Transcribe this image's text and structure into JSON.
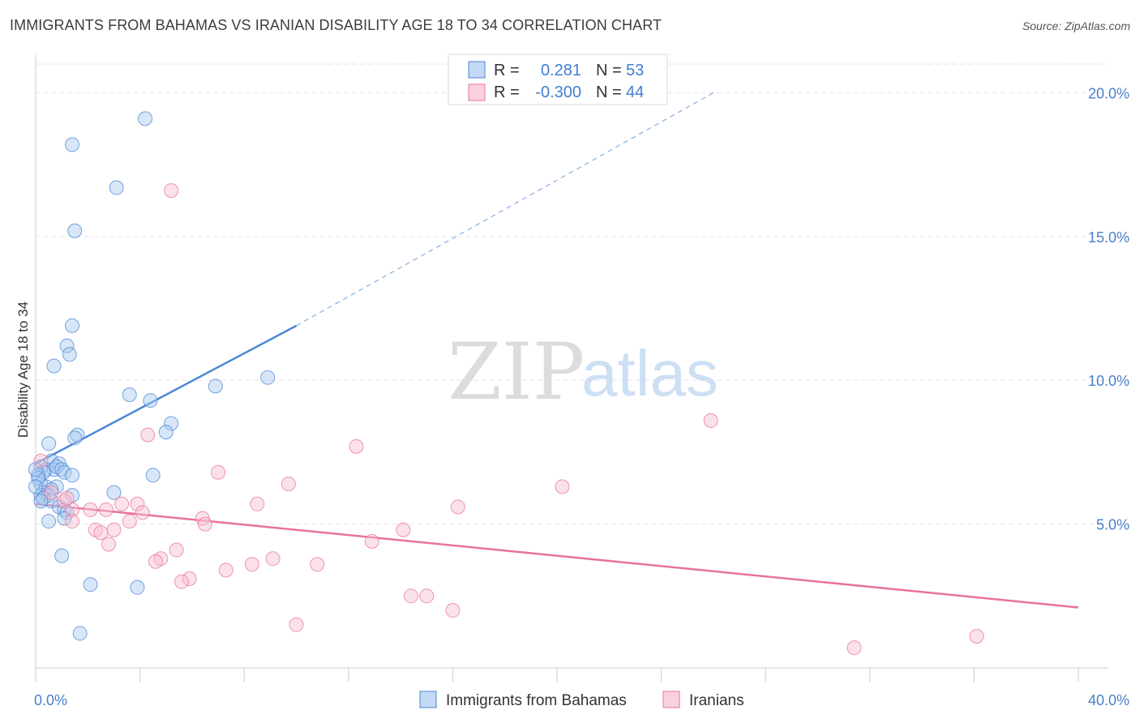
{
  "title": "IMMIGRANTS FROM BAHAMAS VS IRANIAN DISABILITY AGE 18 TO 34 CORRELATION CHART",
  "source": "Source: ZipAtlas.com",
  "watermark": {
    "zip": "ZIP",
    "atlas": "atlas"
  },
  "colors": {
    "blue": "#4a86d6",
    "blue_fill": "#a9c9f0",
    "pink": "#e8739a",
    "pink_fill": "#f6bfd0",
    "axis_text": "#4a7fc9",
    "grid": "#e6e6e6"
  },
  "legend": {
    "rows": [
      {
        "r_label": "R =",
        "r_value": "0.281",
        "n_label": "N =",
        "n_value": "53"
      },
      {
        "r_label": "R =",
        "r_value": "-0.300",
        "n_label": "N =",
        "n_value": "44"
      }
    ]
  },
  "chart_data": {
    "type": "scatter",
    "title": "IMMIGRANTS FROM BAHAMAS VS IRANIAN DISABILITY AGE 18 TO 34 CORRELATION CHART",
    "xlabel": "",
    "ylabel": "Disability Age 18 to 34",
    "xlim": [
      0,
      40
    ],
    "ylim": [
      0,
      21
    ],
    "x_ticks": [
      "0.0%",
      "40.0%"
    ],
    "y_ticks": [
      {
        "value": 5,
        "label": "5.0%"
      },
      {
        "value": 10,
        "label": "10.0%"
      },
      {
        "value": 15,
        "label": "15.0%"
      },
      {
        "value": 20,
        "label": "20.0%"
      }
    ],
    "grid": true,
    "legend_position": "bottom",
    "series": [
      {
        "name": "Immigrants from Bahamas",
        "color": "#4a86d6",
        "trend": {
          "x": [
            0,
            10
          ],
          "y": [
            7.1,
            11.9
          ],
          "dashed_to": [
            26,
            20.0
          ]
        },
        "points": [
          [
            4.2,
            19.1
          ],
          [
            1.4,
            18.2
          ],
          [
            3.1,
            16.7
          ],
          [
            1.5,
            15.2
          ],
          [
            1.4,
            11.9
          ],
          [
            1.2,
            11.2
          ],
          [
            1.3,
            10.9
          ],
          [
            0.7,
            10.5
          ],
          [
            6.9,
            9.8
          ],
          [
            8.9,
            10.1
          ],
          [
            3.6,
            9.5
          ],
          [
            4.4,
            9.3
          ],
          [
            5.2,
            8.5
          ],
          [
            5.0,
            8.2
          ],
          [
            1.6,
            8.1
          ],
          [
            1.5,
            8.0
          ],
          [
            0.5,
            7.8
          ],
          [
            0.6,
            7.2
          ],
          [
            0.9,
            7.1
          ],
          [
            0.2,
            7.0
          ],
          [
            0.4,
            6.9
          ],
          [
            0.7,
            6.9
          ],
          [
            0.8,
            7.0
          ],
          [
            1.0,
            6.9
          ],
          [
            1.1,
            6.8
          ],
          [
            0.3,
            6.8
          ],
          [
            1.4,
            6.7
          ],
          [
            4.5,
            6.7
          ],
          [
            0.1,
            6.7
          ],
          [
            0.2,
            6.4
          ],
          [
            0.4,
            6.3
          ],
          [
            0.8,
            6.3
          ],
          [
            0.6,
            6.2
          ],
          [
            0.3,
            6.1
          ],
          [
            0.5,
            6.0
          ],
          [
            0.2,
            6.0
          ],
          [
            1.4,
            6.0
          ],
          [
            3.0,
            6.1
          ],
          [
            0.3,
            5.9
          ],
          [
            0.6,
            5.8
          ],
          [
            0.9,
            5.6
          ],
          [
            1.1,
            5.5
          ],
          [
            1.2,
            5.4
          ],
          [
            1.1,
            5.2
          ],
          [
            0.5,
            5.1
          ],
          [
            1.0,
            3.9
          ],
          [
            2.1,
            2.9
          ],
          [
            3.9,
            2.8
          ],
          [
            1.7,
            1.2
          ],
          [
            0.1,
            6.6
          ],
          [
            0.0,
            6.9
          ],
          [
            0.0,
            6.3
          ],
          [
            0.2,
            5.8
          ]
        ]
      },
      {
        "name": "Iranians",
        "color": "#e8739a",
        "trend": {
          "x": [
            0,
            40
          ],
          "y": [
            5.7,
            2.1
          ]
        },
        "points": [
          [
            5.2,
            16.6
          ],
          [
            25.9,
            8.6
          ],
          [
            4.3,
            8.1
          ],
          [
            12.3,
            7.7
          ],
          [
            0.2,
            7.2
          ],
          [
            7.0,
            6.8
          ],
          [
            9.7,
            6.4
          ],
          [
            20.2,
            6.3
          ],
          [
            0.6,
            6.1
          ],
          [
            1.1,
            5.8
          ],
          [
            3.3,
            5.7
          ],
          [
            3.9,
            5.7
          ],
          [
            8.5,
            5.7
          ],
          [
            16.2,
            5.6
          ],
          [
            1.4,
            5.5
          ],
          [
            2.1,
            5.5
          ],
          [
            2.7,
            5.5
          ],
          [
            4.1,
            5.4
          ],
          [
            6.4,
            5.2
          ],
          [
            3.6,
            5.1
          ],
          [
            1.4,
            5.1
          ],
          [
            6.5,
            5.0
          ],
          [
            2.3,
            4.8
          ],
          [
            3.0,
            4.8
          ],
          [
            14.1,
            4.8
          ],
          [
            2.5,
            4.7
          ],
          [
            12.9,
            4.4
          ],
          [
            2.8,
            4.3
          ],
          [
            5.4,
            4.1
          ],
          [
            4.8,
            3.8
          ],
          [
            9.1,
            3.8
          ],
          [
            4.6,
            3.7
          ],
          [
            8.3,
            3.6
          ],
          [
            10.8,
            3.6
          ],
          [
            7.3,
            3.4
          ],
          [
            5.9,
            3.1
          ],
          [
            5.6,
            3.0
          ],
          [
            14.4,
            2.5
          ],
          [
            15.0,
            2.5
          ],
          [
            16.0,
            2.0
          ],
          [
            10.0,
            1.5
          ],
          [
            36.1,
            1.1
          ],
          [
            31.4,
            0.7
          ],
          [
            1.2,
            5.9
          ]
        ]
      }
    ]
  },
  "bottom_legend": [
    {
      "label": "Immigrants from Bahamas"
    },
    {
      "label": "Iranians"
    }
  ]
}
